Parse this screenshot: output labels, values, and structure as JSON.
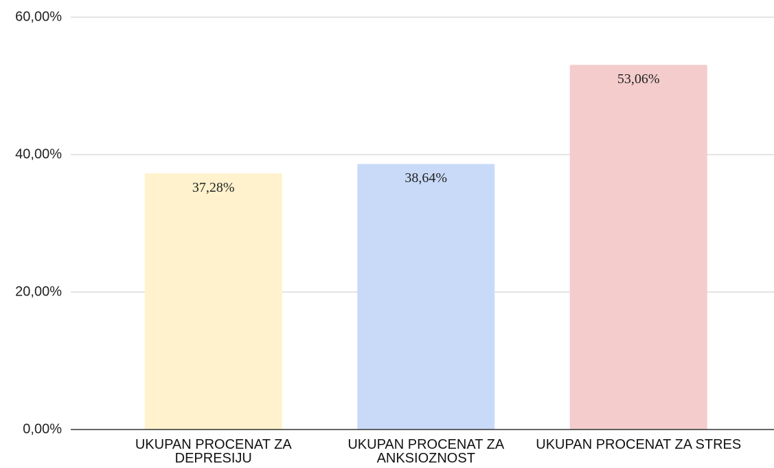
{
  "chart_data": {
    "type": "bar",
    "categories": [
      "UKUPAN PROCENAT ZA DEPRESIJU",
      "UKUPAN PROCENAT ZA ANKSIOZNOST",
      "UKUPAN PROCENAT ZA STRES"
    ],
    "values": [
      37.28,
      38.64,
      53.06
    ],
    "value_labels": [
      "37,28%",
      "38,64%",
      "53,06%"
    ],
    "colors": [
      "#fff2cc",
      "#c9daf8",
      "#f4cccc"
    ],
    "ylim": [
      0,
      60
    ],
    "yticks": [
      {
        "value": 0,
        "label": "0,00%"
      },
      {
        "value": 20,
        "label": "20,00%"
      },
      {
        "value": 40,
        "label": "40,00%"
      },
      {
        "value": 60,
        "label": "60,00%"
      }
    ],
    "grid": true
  }
}
